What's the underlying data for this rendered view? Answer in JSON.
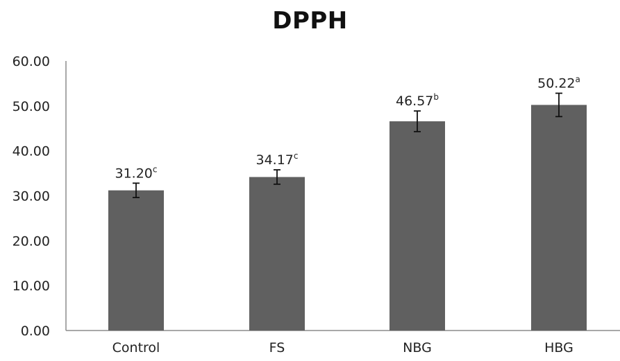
{
  "chart_data": {
    "type": "bar",
    "title": "DPPH",
    "xlabel": "",
    "ylabel": "",
    "categories": [
      "Control",
      "FS",
      "NBG",
      "HBG"
    ],
    "series": [
      {
        "values": [
          31.2,
          34.17,
          46.57,
          50.22
        ],
        "errors": [
          1.6,
          1.6,
          2.3,
          2.6
        ],
        "data_labels": [
          "31.20",
          "34.17",
          "46.57",
          "50.22"
        ],
        "significance_letters": [
          "c",
          "c",
          "b",
          "a"
        ]
      }
    ],
    "ylim": [
      0,
      60
    ],
    "y_ticks": [
      "0.00",
      "10.00",
      "20.00",
      "30.00",
      "40.00",
      "50.00",
      "60.00"
    ],
    "y_tick_values": [
      0,
      10,
      20,
      30,
      40,
      50,
      60
    ],
    "grid": false,
    "legend": "none",
    "colors": {
      "bar": "#606060",
      "axis": "#8c8c8c",
      "text": "#222222"
    }
  }
}
